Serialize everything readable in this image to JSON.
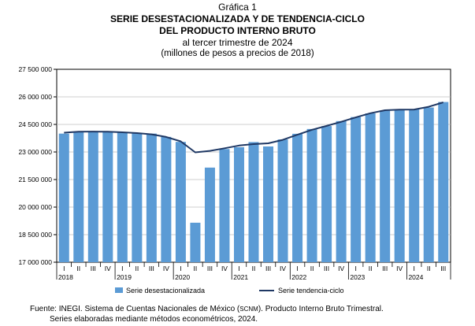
{
  "header": {
    "figure_label": "Gráfica 1",
    "title_line1": "SERIE DESESTACIONALIZADA Y DE TENDENCIA-CICLO",
    "title_line2": "DEL PRODUCTO INTERNO BRUTO",
    "subtitle": "al tercer trimestre de 2024",
    "units": "(millones de pesos a precios de 2018)"
  },
  "footer": {
    "source_label": "Fuente: INEGI.",
    "source_text_a": "Sistema de Cuentas Nacionales de México (",
    "source_abbr": "SCNM",
    "source_text_b": "). Producto Interno Bruto Trimestral.",
    "note": "Series elaboradas mediante métodos econométricos, 2024."
  },
  "chart_data": {
    "type": "bar",
    "ylim": [
      17000000,
      27500000
    ],
    "y_ticks": [
      17000000,
      18500000,
      20000000,
      21500000,
      23000000,
      24500000,
      26000000,
      27500000
    ],
    "y_tick_labels": [
      "17 000 000",
      "18 500 000",
      "20 000 000",
      "21 500 000",
      "23 000 000",
      "24 500 000",
      "26 000 000",
      "27 500 000"
    ],
    "quarter_labels": [
      "I",
      "II",
      "III",
      "IV",
      "I",
      "II",
      "III",
      "IV",
      "I",
      "II",
      "III",
      "IV",
      "I",
      "II",
      "III",
      "IV",
      "I",
      "II",
      "III",
      "IV",
      "I",
      "II",
      "III",
      "IV",
      "I",
      "II",
      "III"
    ],
    "year_labels": [
      "2018",
      "2019",
      "2020",
      "2021",
      "2022",
      "2023",
      "2024"
    ],
    "grid": true,
    "legend_position": "bottom",
    "series": [
      {
        "name": "Serie desestacionalizada",
        "type": "bar",
        "color": "#5b9bd5",
        "values": [
          24000000,
          24080000,
          24080000,
          24120000,
          24080000,
          24040000,
          24000000,
          23820000,
          23550000,
          19150000,
          22150000,
          23160000,
          23260000,
          23540000,
          23300000,
          23680000,
          23990000,
          24250000,
          24410000,
          24680000,
          24900000,
          25100000,
          25240000,
          25290000,
          25310000,
          25420000,
          25720000
        ]
      },
      {
        "name": "Serie tendencia-ciclo",
        "type": "line",
        "color": "#1f3864",
        "values": [
          24050000,
          24100000,
          24110000,
          24100000,
          24070000,
          24030000,
          23960000,
          23820000,
          23580000,
          22980000,
          23060000,
          23200000,
          23350000,
          23430000,
          23470000,
          23660000,
          23940000,
          24210000,
          24420000,
          24640000,
          24880000,
          25110000,
          25270000,
          25300000,
          25310000,
          25460000,
          25700000
        ]
      }
    ]
  }
}
